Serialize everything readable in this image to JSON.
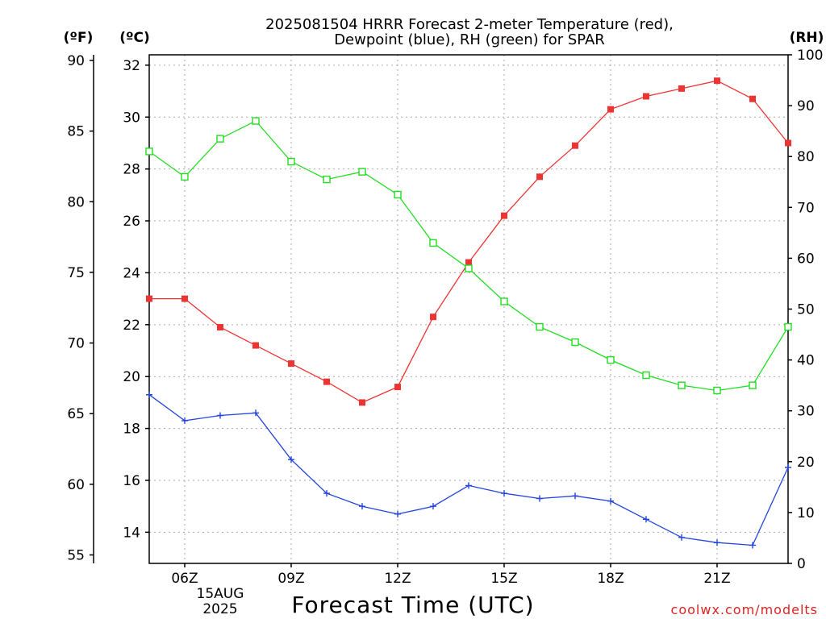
{
  "chart_data": {
    "type": "line",
    "title_lines": [
      "2025081504 HRRR Forecast 2-meter Temperature (red),",
      "Dewpoint (blue), RH (green) for SPAR"
    ],
    "xlabel": "Forecast Time (UTC)",
    "credit": "coolwx.com/modelts",
    "credit_color": "#dd2222",
    "x_date_labels": [
      "15AUG",
      "2025"
    ],
    "left_axis_f": {
      "unit": "(ºF)",
      "range": [
        54.4,
        90.4
      ],
      "ticks": [
        "55",
        "60",
        "65",
        "70",
        "75",
        "80",
        "85",
        "90"
      ]
    },
    "left_axis_c": {
      "unit": "(ºC)",
      "range": [
        12.8,
        32.4
      ],
      "ticks": [
        "14",
        "16",
        "18",
        "20",
        "22",
        "24",
        "26",
        "28",
        "30",
        "32"
      ]
    },
    "right_axis_rh": {
      "unit": "(RH)",
      "range": [
        0,
        100
      ],
      "ticks": [
        "0",
        "10",
        "20",
        "30",
        "40",
        "50",
        "60",
        "70",
        "80",
        "90",
        "100"
      ]
    },
    "x_range_hours": [
      3,
      21
    ],
    "x_ticks": [
      {
        "hour": 4,
        "label": "06Z"
      },
      {
        "hour": 7,
        "label": "09Z"
      },
      {
        "hour": 10,
        "label": "12Z"
      },
      {
        "hour": 13,
        "label": "15Z"
      },
      {
        "hour": 16,
        "label": "18Z"
      },
      {
        "hour": 19,
        "label": "21Z"
      }
    ],
    "x_hours": [
      3,
      4,
      5,
      6,
      7,
      8,
      9,
      10,
      11,
      12,
      13,
      14,
      15,
      16,
      17,
      18,
      19,
      20,
      21
    ],
    "series": [
      {
        "name": "Temperature",
        "axis": "c",
        "color": "#ee3333",
        "marker": "filled-square",
        "values": [
          23.0,
          23.0,
          21.9,
          21.2,
          20.5,
          19.8,
          19.0,
          19.6,
          22.3,
          24.4,
          26.2,
          27.7,
          28.9,
          30.3,
          30.8,
          31.1,
          31.4,
          30.7,
          29.0
        ]
      },
      {
        "name": "Dewpoint",
        "axis": "c",
        "color": "#2244dd",
        "marker": "plus",
        "values": [
          19.3,
          18.3,
          18.5,
          18.6,
          16.8,
          15.5,
          15.0,
          14.7,
          15.0,
          15.8,
          15.5,
          15.3,
          15.4,
          15.2,
          14.5,
          13.8,
          13.6,
          13.5,
          16.5
        ]
      },
      {
        "name": "RH",
        "axis": "rh",
        "color": "#22dd22",
        "marker": "open-square",
        "values": [
          81,
          76,
          83.5,
          87,
          79,
          75.5,
          77,
          72.5,
          63,
          58,
          51.5,
          46.5,
          43.5,
          40,
          37,
          35,
          34,
          35,
          46.5
        ]
      }
    ],
    "grid": true
  }
}
